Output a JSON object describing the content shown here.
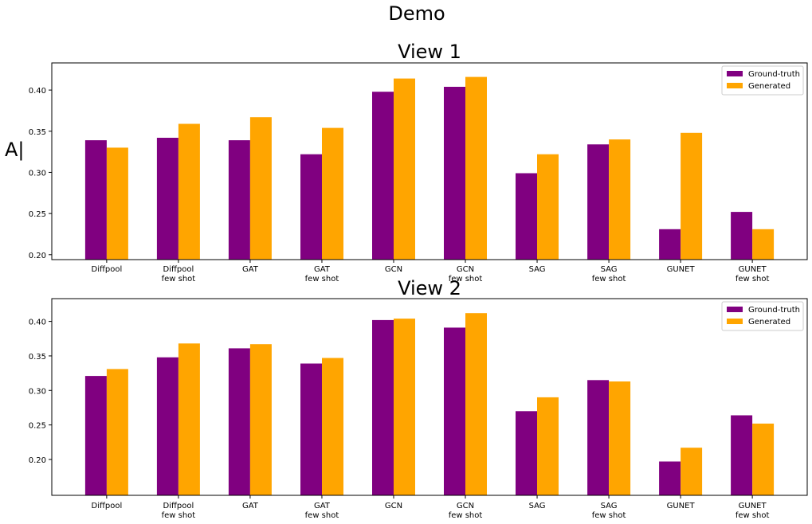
{
  "figure": {
    "title": "Demo",
    "ylabel": "A|"
  },
  "legend_labels": [
    "Ground-truth",
    "Generated"
  ],
  "chart_data": [
    {
      "type": "bar",
      "title": "View 1",
      "categories": [
        "Diffpool",
        "Diffpool\nfew shot",
        "GAT",
        "GAT\nfew shot",
        "GCN",
        "GCN\nfew shot",
        "SAG",
        "SAG\nfew shot",
        "GUNET",
        "GUNET\nfew shot"
      ],
      "series": [
        {
          "name": "Ground-truth",
          "color": "#800080",
          "values": [
            0.339,
            0.342,
            0.339,
            0.322,
            0.398,
            0.404,
            0.299,
            0.334,
            0.231,
            0.252
          ]
        },
        {
          "name": "Generated",
          "color": "#FFA500",
          "values": [
            0.33,
            0.359,
            0.367,
            0.354,
            0.414,
            0.416,
            0.322,
            0.34,
            0.348,
            0.231
          ]
        }
      ],
      "ylim": [
        0.194,
        0.433
      ],
      "yticks": [
        0.2,
        0.25,
        0.3,
        0.35,
        0.4
      ],
      "ytick_labels": [
        "0.20",
        "0.25",
        "0.30",
        "0.35",
        "0.40"
      ],
      "xlabel": "",
      "ylabel": "A|",
      "legend": "top-right",
      "grid": false
    },
    {
      "type": "bar",
      "title": "View 2",
      "categories": [
        "Diffpool",
        "Diffpool\nfew shot",
        "GAT",
        "GAT\nfew shot",
        "GCN",
        "GCN\nfew shot",
        "SAG",
        "SAG\nfew shot",
        "GUNET",
        "GUNET\nfew shot"
      ],
      "series": [
        {
          "name": "Ground-truth",
          "color": "#800080",
          "values": [
            0.321,
            0.348,
            0.361,
            0.339,
            0.402,
            0.391,
            0.27,
            0.315,
            0.197,
            0.264
          ]
        },
        {
          "name": "Generated",
          "color": "#FFA500",
          "values": [
            0.331,
            0.368,
            0.367,
            0.347,
            0.404,
            0.412,
            0.29,
            0.313,
            0.217,
            0.252
          ]
        }
      ],
      "ylim": [
        0.148,
        0.433
      ],
      "yticks": [
        0.2,
        0.25,
        0.3,
        0.35,
        0.4
      ],
      "ytick_labels": [
        "0.20",
        "0.25",
        "0.30",
        "0.35",
        "0.40"
      ],
      "xlabel": "",
      "ylabel": "",
      "legend": "top-right",
      "grid": false
    }
  ]
}
